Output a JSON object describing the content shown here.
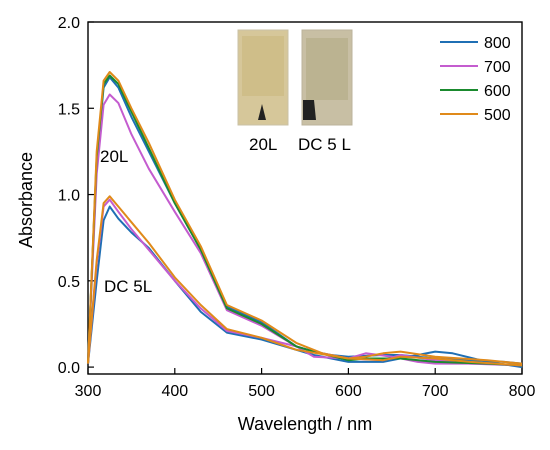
{
  "chart_data": {
    "type": "line",
    "xlabel": "Wavelength / nm",
    "ylabel": "Absorbance",
    "xlim": [
      300,
      800
    ],
    "ylim": [
      -0.04,
      2.0
    ],
    "xticks": [
      "300",
      "400",
      "500",
      "600",
      "700",
      "800"
    ],
    "yticks": [
      "0.0",
      "0.5",
      "1.0",
      "1.5",
      "2.0"
    ],
    "grid": false,
    "legend": "top-right",
    "annotations": [
      "20L",
      "DC 5L"
    ],
    "photo_labels": [
      "20L",
      "DC 5 L"
    ],
    "series": [
      {
        "name": "800",
        "color": "#1f6fb4",
        "groups": [
          {
            "x": [
              300,
              310,
              318,
              325,
              335,
              350,
              370,
              400,
              430,
              460,
              500,
              540,
              560,
              580,
              600,
              640,
              660,
              700,
              740,
              780,
              800
            ],
            "y": [
              0.02,
              1.2,
              1.62,
              1.68,
              1.62,
              1.45,
              1.25,
              0.95,
              0.68,
              0.35,
              0.26,
              0.12,
              0.09,
              0.07,
              0.06,
              0.07,
              0.07,
              0.05,
              0.04,
              0.03,
              0.02
            ]
          },
          {
            "x": [
              300,
              310,
              318,
              325,
              335,
              350,
              370,
              400,
              430,
              460,
              500,
              540,
              560,
              600,
              640,
              680,
              700,
              720,
              760,
              800
            ],
            "y": [
              0.02,
              0.5,
              0.85,
              0.93,
              0.86,
              0.78,
              0.69,
              0.5,
              0.32,
              0.2,
              0.16,
              0.1,
              0.07,
              0.03,
              0.03,
              0.07,
              0.09,
              0.08,
              0.03,
              0.0
            ]
          }
        ]
      },
      {
        "name": "700",
        "color": "#c45ccf",
        "groups": [
          {
            "x": [
              300,
              310,
              318,
              325,
              335,
              350,
              370,
              400,
              430,
              460,
              500,
              540,
              560,
              600,
              620,
              650,
              680,
              700,
              760,
              800
            ],
            "y": [
              0.02,
              1.12,
              1.52,
              1.58,
              1.53,
              1.35,
              1.15,
              0.9,
              0.66,
              0.33,
              0.24,
              0.12,
              0.06,
              0.05,
              0.08,
              0.06,
              0.03,
              0.02,
              0.02,
              0.01
            ]
          },
          {
            "x": [
              300,
              310,
              318,
              325,
              335,
              350,
              370,
              400,
              430,
              460,
              500,
              540,
              560,
              600,
              640,
              660,
              700,
              740,
              800
            ],
            "y": [
              0.02,
              0.6,
              0.93,
              0.97,
              0.9,
              0.8,
              0.68,
              0.5,
              0.34,
              0.21,
              0.17,
              0.12,
              0.09,
              0.05,
              0.04,
              0.07,
              0.04,
              0.02,
              0.01
            ]
          }
        ]
      },
      {
        "name": "600",
        "color": "#1a8a2e",
        "groups": [
          {
            "x": [
              300,
              310,
              318,
              325,
              335,
              350,
              370,
              400,
              430,
              460,
              500,
              540,
              560,
              600,
              620,
              660,
              700,
              760,
              800
            ],
            "y": [
              0.02,
              1.22,
              1.64,
              1.69,
              1.64,
              1.48,
              1.27,
              0.95,
              0.68,
              0.34,
              0.25,
              0.12,
              0.09,
              0.04,
              0.05,
              0.05,
              0.03,
              0.02,
              0.01
            ]
          }
        ]
      },
      {
        "name": "500",
        "color": "#e08a1a",
        "groups": [
          {
            "x": [
              300,
              310,
              318,
              325,
              335,
              350,
              370,
              400,
              430,
              460,
              500,
              540,
              570,
              600,
              620,
              640,
              660,
              700,
              760,
              800
            ],
            "y": [
              0.02,
              1.25,
              1.66,
              1.71,
              1.66,
              1.5,
              1.3,
              0.97,
              0.7,
              0.36,
              0.27,
              0.14,
              0.08,
              0.05,
              0.06,
              0.08,
              0.09,
              0.06,
              0.04,
              0.02
            ]
          },
          {
            "x": [
              300,
              310,
              318,
              325,
              335,
              350,
              370,
              400,
              430,
              460,
              500,
              540,
              600,
              640,
              660,
              700,
              740,
              800
            ],
            "y": [
              0.02,
              0.62,
              0.95,
              0.99,
              0.93,
              0.84,
              0.72,
              0.52,
              0.36,
              0.22,
              0.17,
              0.1,
              0.05,
              0.04,
              0.06,
              0.05,
              0.03,
              0.01
            ]
          }
        ]
      }
    ]
  }
}
